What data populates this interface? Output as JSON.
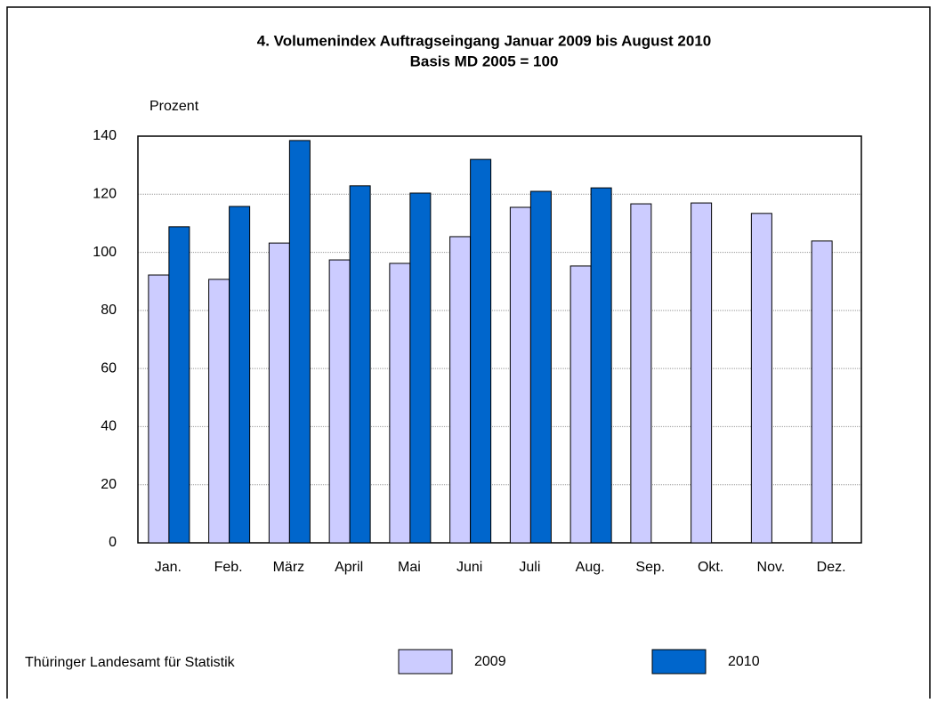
{
  "chart_data": {
    "type": "bar",
    "title": "4. Volumenindex Auftragseingang Januar 2009 bis August 2010",
    "subtitle": "Basis MD 2005 = 100",
    "y_label": "Prozent",
    "source": "Thüringer Landesamt für Statistik",
    "categories": [
      "Jan.",
      "Feb.",
      "März",
      "April",
      "Mai",
      "Juni",
      "Juli",
      "Aug.",
      "Sep.",
      "Okt.",
      "Nov.",
      "Dez."
    ],
    "series": [
      {
        "name": "2009",
        "color": "#ccccff",
        "values": [
          92.2,
          90.7,
          103.2,
          97.4,
          96.2,
          105.4,
          115.5,
          95.3,
          116.7,
          117,
          113.4,
          103.9
        ]
      },
      {
        "name": "2010",
        "color": "#0066cc",
        "values": [
          108.8,
          115.8,
          138.5,
          122.9,
          120.4,
          132,
          121,
          122.2,
          null,
          null,
          null,
          null
        ]
      }
    ],
    "ylim": [
      0,
      140
    ],
    "yticks": [
      0,
      20,
      40,
      60,
      80,
      100,
      120,
      140
    ],
    "grid": true
  }
}
